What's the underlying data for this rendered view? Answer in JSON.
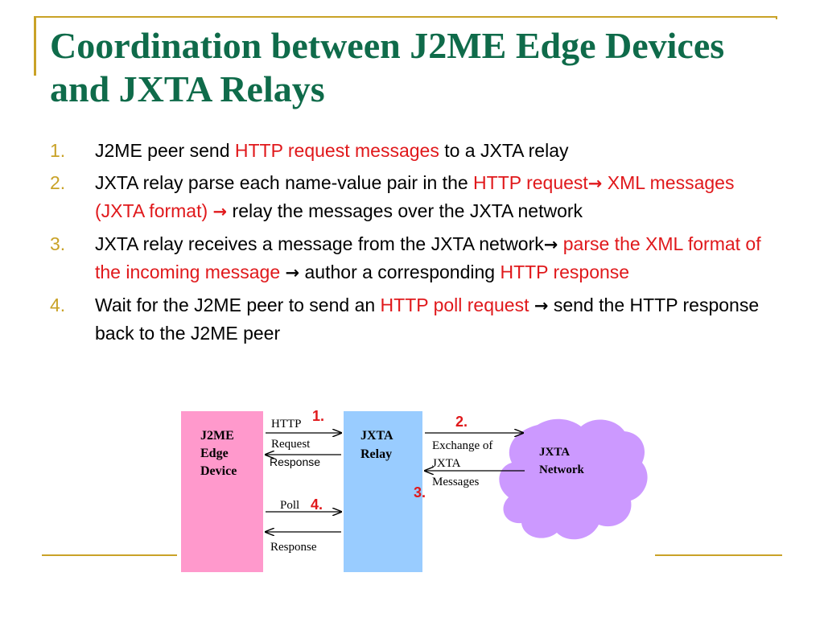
{
  "slide": {
    "title": "Coordination between J2ME Edge Devices and JXTA Relays",
    "colors": {
      "title": "#0f6b4a",
      "accent_frame": "#c9a227",
      "highlight": "#e0181b"
    }
  },
  "items": [
    {
      "number": "1.",
      "parts": [
        {
          "text": "J2ME peer send ",
          "red": false
        },
        {
          "text": "HTTP request messages",
          "red": true
        },
        {
          "text": " to a JXTA relay",
          "red": false
        }
      ]
    },
    {
      "number": "2.",
      "parts": [
        {
          "text": "JXTA relay parse each name-value pair in the ",
          "red": false
        },
        {
          "text": "HTTP request",
          "red": true
        },
        {
          "text": "→",
          "red": true,
          "arrow": true
        },
        {
          "text": " XML messages (JXTA format) ",
          "red": true
        },
        {
          "text": "→",
          "red": true,
          "arrow": true
        },
        {
          "text": " relay the messages over the JXTA network",
          "red": false
        }
      ]
    },
    {
      "number": "3.",
      "parts": [
        {
          "text": "JXTA relay receives a message from the JXTA network",
          "red": false
        },
        {
          "text": "→",
          "red": false,
          "arrow": true
        },
        {
          "text": " parse the XML format of the incoming message ",
          "red": true
        },
        {
          "text": "→",
          "red": false,
          "arrow": true
        },
        {
          "text": " author a corresponding ",
          "red": false
        },
        {
          "text": "HTTP response",
          "red": true
        }
      ]
    },
    {
      "number": "4.",
      "parts": [
        {
          "text": "Wait for the J2ME peer to send an ",
          "red": false
        },
        {
          "text": "HTTP poll request",
          "red": true
        },
        {
          "text": " ",
          "red": false
        },
        {
          "text": "→",
          "red": false,
          "arrow": true
        },
        {
          "text": " send the HTTP response back to the J2ME peer",
          "red": false
        }
      ]
    }
  ],
  "diagram": {
    "device_label": [
      "J2ME",
      "Edge",
      "Device"
    ],
    "relay_label": [
      "JXTA",
      "Relay"
    ],
    "network_label": [
      "JXTA",
      "Network"
    ],
    "http_request_label": [
      "HTTP",
      "Request"
    ],
    "response_small_label": "Response",
    "exchange_label": [
      "Exchange of",
      "JXTA",
      "Messages"
    ],
    "poll_label": "Poll",
    "response_label": "Response",
    "step_labels": [
      "1.",
      "2.",
      "3.",
      "4."
    ],
    "colors": {
      "device": "#ff99cc",
      "relay": "#99ccff",
      "network": "#cc99ff",
      "step": "#e0181b"
    }
  }
}
